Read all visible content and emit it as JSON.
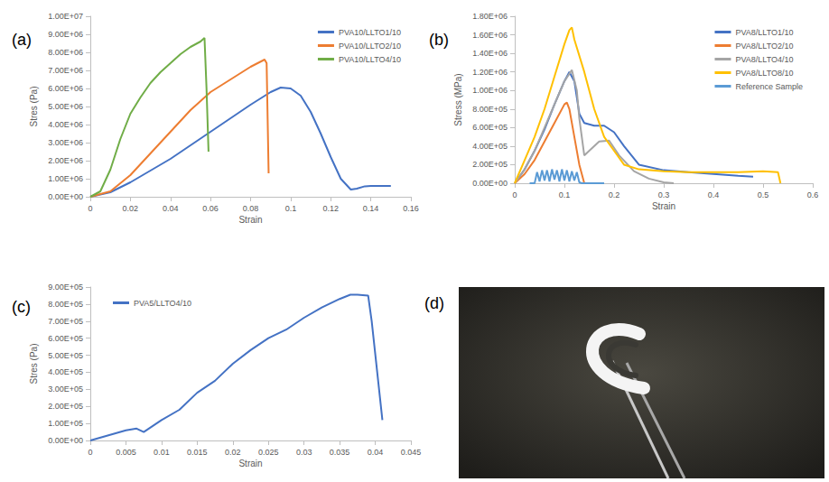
{
  "chart_data": [
    {
      "type": "line",
      "title": "(a)",
      "x_label": "Strain",
      "y_label": "Stres (Pa)",
      "xlim": [
        0,
        0.16
      ],
      "xticks": [
        0,
        0.02,
        0.04,
        0.06,
        0.08,
        0.1,
        0.12,
        0.14,
        0.16
      ],
      "ylim": [
        0,
        10000000
      ],
      "yticks": [
        {
          "value": 0,
          "label": "0.00E+00"
        },
        {
          "value": 1000000,
          "label": "1.00E+06"
        },
        {
          "value": 2000000,
          "label": "2.00E+06"
        },
        {
          "value": 3000000,
          "label": "3.00E+06"
        },
        {
          "value": 4000000,
          "label": "4.00E+06"
        },
        {
          "value": 5000000,
          "label": "5.00E+06"
        },
        {
          "value": 6000000,
          "label": "6.00E+06"
        },
        {
          "value": 7000000,
          "label": "7.00E+06"
        },
        {
          "value": 8000000,
          "label": "8.00E+06"
        },
        {
          "value": 9000000,
          "label": "9.00E+06"
        },
        {
          "value": 10000000,
          "label": "1.00E+07"
        }
      ],
      "grid": false,
      "legend": "upper right",
      "series": [
        {
          "name": "PVA10/LLTO1/10",
          "color": "#4472c4",
          "line_style": "solid",
          "x": [
            0,
            0.01,
            0.02,
            0.03,
            0.04,
            0.05,
            0.06,
            0.07,
            0.08,
            0.09,
            0.095,
            0.1,
            0.105,
            0.11,
            0.115,
            0.12,
            0.125,
            0.13,
            0.133,
            0.137,
            0.14,
            0.15
          ],
          "values": [
            0,
            250000,
            800000,
            1450000,
            2100000,
            2850000,
            3600000,
            4350000,
            5100000,
            5800000,
            6050000,
            6000000,
            5600000,
            4700000,
            3500000,
            2200000,
            1000000,
            400000,
            450000,
            580000,
            600000,
            600000
          ]
        },
        {
          "name": "PVA10/LLTO2/10",
          "color": "#ed7d31",
          "line_style": "solid",
          "x": [
            0,
            0.01,
            0.02,
            0.03,
            0.04,
            0.05,
            0.06,
            0.07,
            0.08,
            0.087,
            0.088,
            0.089
          ],
          "values": [
            0,
            300000,
            1200000,
            2400000,
            3600000,
            4800000,
            5800000,
            6500000,
            7200000,
            7600000,
            7400000,
            1300000
          ]
        },
        {
          "name": "PVA10/LLTO4/10",
          "color": "#70ad47",
          "line_style": "solid",
          "x": [
            0,
            0.005,
            0.01,
            0.015,
            0.02,
            0.025,
            0.03,
            0.035,
            0.04,
            0.045,
            0.05,
            0.055,
            0.057,
            0.058,
            0.059
          ],
          "values": [
            0,
            300000,
            1500000,
            3200000,
            4600000,
            5500000,
            6300000,
            6900000,
            7400000,
            7900000,
            8300000,
            8600000,
            8800000,
            6000000,
            2500000
          ]
        }
      ]
    },
    {
      "type": "line",
      "title": "(b)",
      "x_label": "Strain",
      "y_label": "Stress (MPa)",
      "xlim": [
        0,
        0.6
      ],
      "xticks": [
        0,
        0.1,
        0.2,
        0.3,
        0.4,
        0.5,
        0.6
      ],
      "ylim": [
        0,
        1800000
      ],
      "yticks": [
        {
          "value": 0,
          "label": "0.00E+00"
        },
        {
          "value": 200000,
          "label": "2.00E+05"
        },
        {
          "value": 400000,
          "label": "4.00E+05"
        },
        {
          "value": 600000,
          "label": "6.00E+05"
        },
        {
          "value": 800000,
          "label": "8.00E+05"
        },
        {
          "value": 1000000,
          "label": "1.00E+06"
        },
        {
          "value": 1200000,
          "label": "1.20E+06"
        },
        {
          "value": 1400000,
          "label": "1.40E+06"
        },
        {
          "value": 1600000,
          "label": "1.60E+06"
        },
        {
          "value": 1800000,
          "label": "1.80E+06"
        }
      ],
      "grid": false,
      "legend": "upper right",
      "series": [
        {
          "name": "PVA8/LLTO1/10",
          "color": "#4472c4",
          "line_style": "solid",
          "x": [
            0,
            0.02,
            0.04,
            0.06,
            0.08,
            0.1,
            0.11,
            0.12,
            0.13,
            0.14,
            0.16,
            0.18,
            0.2,
            0.22,
            0.25,
            0.3,
            0.35,
            0.4,
            0.45,
            0.48
          ],
          "values": [
            0,
            150000,
            350000,
            580000,
            850000,
            1100000,
            1200000,
            1100000,
            750000,
            650000,
            620000,
            620000,
            550000,
            400000,
            200000,
            140000,
            120000,
            100000,
            80000,
            70000
          ]
        },
        {
          "name": "PVA8/LLTO2/10",
          "color": "#ed7d31",
          "line_style": "solid",
          "x": [
            0,
            0.02,
            0.04,
            0.06,
            0.08,
            0.1,
            0.105,
            0.11,
            0.12,
            0.13,
            0.14
          ],
          "values": [
            0,
            100000,
            250000,
            450000,
            650000,
            850000,
            870000,
            800000,
            500000,
            200000,
            0
          ]
        },
        {
          "name": "PVA8/LLTO4/10",
          "color": "#a5a5a5",
          "line_style": "solid",
          "x": [
            0,
            0.02,
            0.04,
            0.06,
            0.08,
            0.1,
            0.115,
            0.125,
            0.13,
            0.14,
            0.15,
            0.17,
            0.19,
            0.21,
            0.24,
            0.27,
            0.3,
            0.32
          ],
          "values": [
            0,
            150000,
            350000,
            600000,
            850000,
            1100000,
            1220000,
            1000000,
            700000,
            300000,
            350000,
            450000,
            460000,
            300000,
            130000,
            50000,
            10000,
            0
          ]
        },
        {
          "name": "PVA8/LLTO8/10",
          "color": "#ffc000",
          "line_style": "solid",
          "x": [
            0,
            0.02,
            0.04,
            0.06,
            0.08,
            0.1,
            0.11,
            0.115,
            0.12,
            0.14,
            0.16,
            0.18,
            0.2,
            0.22,
            0.25,
            0.3,
            0.35,
            0.4,
            0.45,
            0.5,
            0.53,
            0.535
          ],
          "values": [
            0,
            250000,
            500000,
            800000,
            1150000,
            1500000,
            1650000,
            1680000,
            1550000,
            1200000,
            800000,
            500000,
            350000,
            200000,
            150000,
            130000,
            120000,
            120000,
            120000,
            130000,
            120000,
            0
          ]
        },
        {
          "name": "Reference Sample",
          "color": "#5b9bd5",
          "line_style": "solid",
          "x": [
            0.03,
            0.04,
            0.045,
            0.05,
            0.055,
            0.06,
            0.065,
            0.07,
            0.075,
            0.08,
            0.085,
            0.09,
            0.095,
            0.1,
            0.105,
            0.11,
            0.115,
            0.12,
            0.125,
            0.13,
            0.135,
            0.18
          ],
          "values": [
            0,
            0,
            120000,
            20000,
            140000,
            30000,
            140000,
            20000,
            150000,
            40000,
            140000,
            20000,
            150000,
            30000,
            140000,
            20000,
            130000,
            30000,
            120000,
            10000,
            0,
            0
          ]
        }
      ]
    },
    {
      "type": "line",
      "title": "(c)",
      "x_label": "Strain",
      "y_label": "Stres (Pa)",
      "xlim": [
        0,
        0.045
      ],
      "xticks": [
        0,
        0.005,
        0.01,
        0.015,
        0.02,
        0.025,
        0.03,
        0.035,
        0.04,
        0.045
      ],
      "ylim": [
        0,
        900000
      ],
      "yticks": [
        {
          "value": 0,
          "label": "0.00E+00"
        },
        {
          "value": 100000,
          "label": "1.00E+05"
        },
        {
          "value": 200000,
          "label": "2.00E+05"
        },
        {
          "value": 300000,
          "label": "3.00E+05"
        },
        {
          "value": 400000,
          "label": "4.00E+05"
        },
        {
          "value": 500000,
          "label": "5.00E+05"
        },
        {
          "value": 600000,
          "label": "6.00E+05"
        },
        {
          "value": 700000,
          "label": "7.00E+05"
        },
        {
          "value": 800000,
          "label": "8.00E+05"
        },
        {
          "value": 900000,
          "label": "9.00E+05"
        }
      ],
      "grid": false,
      "legend": "upper left",
      "series": [
        {
          "name": "PVA5/LLTO4/10",
          "color": "#4472c4",
          "line_style": "solid",
          "x": [
            0,
            0.005,
            0.0065,
            0.0075,
            0.01,
            0.0125,
            0.015,
            0.0175,
            0.02,
            0.0225,
            0.025,
            0.0275,
            0.03,
            0.0325,
            0.035,
            0.0365,
            0.0375,
            0.039,
            0.0395,
            0.041
          ],
          "values": [
            0,
            60000,
            70000,
            50000,
            120000,
            180000,
            280000,
            350000,
            450000,
            530000,
            600000,
            650000,
            720000,
            780000,
            830000,
            855000,
            855000,
            850000,
            700000,
            120000
          ]
        }
      ]
    }
  ],
  "image_panel": {
    "label": "(d)"
  }
}
